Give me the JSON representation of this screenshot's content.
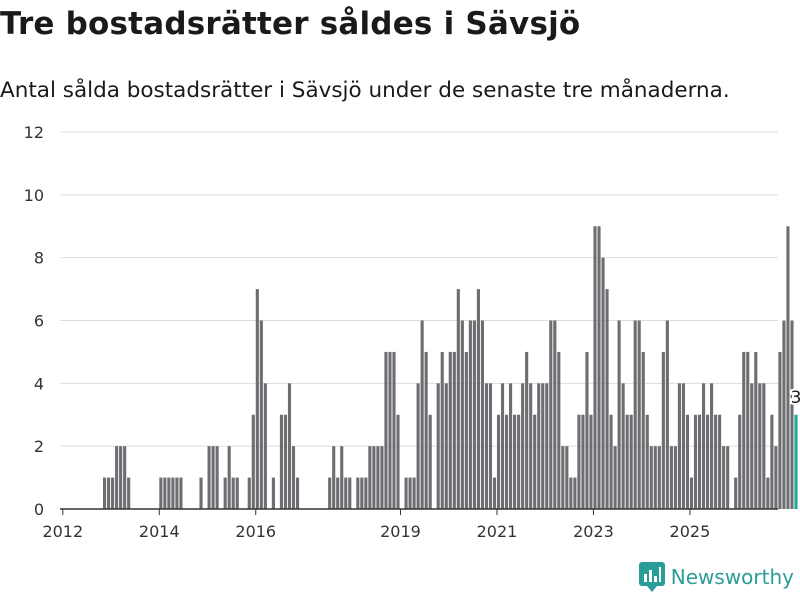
{
  "title": "Tre bostadsrätter såldes i Sävsjö",
  "subtitle": "Antal sålda bostadsrätter i Sävsjö under de senaste tre månaderna.",
  "brand": "Newsworthy",
  "colors": {
    "bar": "#6e6d72",
    "highlight": "#21a59c",
    "grid": "#dddddd",
    "axis": "#333333"
  },
  "chart_data": {
    "type": "bar",
    "xlabel": "",
    "ylabel": "",
    "ylim": [
      0,
      12
    ],
    "yticks": [
      0,
      2,
      4,
      6,
      8,
      10,
      12
    ],
    "xticks": [
      2012,
      2014,
      2016,
      2019,
      2021,
      2023,
      2025
    ],
    "start": "2011-12",
    "values": [
      0,
      0,
      0,
      0,
      0,
      0,
      0,
      0,
      0,
      0,
      0,
      1,
      1,
      1,
      2,
      2,
      2,
      1,
      0,
      0,
      0,
      0,
      0,
      0,
      0,
      1,
      1,
      1,
      1,
      1,
      1,
      0,
      0,
      0,
      0,
      1,
      0,
      2,
      2,
      2,
      0,
      1,
      2,
      1,
      1,
      0,
      0,
      1,
      3,
      7,
      6,
      4,
      0,
      1,
      0,
      3,
      3,
      4,
      2,
      1,
      0,
      0,
      0,
      0,
      0,
      0,
      0,
      1,
      2,
      1,
      2,
      1,
      1,
      0,
      1,
      1,
      1,
      2,
      2,
      2,
      2,
      5,
      5,
      5,
      3,
      0,
      1,
      1,
      1,
      4,
      6,
      5,
      3,
      0,
      4,
      5,
      4,
      5,
      5,
      7,
      6,
      5,
      6,
      6,
      7,
      6,
      4,
      4,
      1,
      3,
      4,
      3,
      4,
      3,
      3,
      4,
      5,
      4,
      3,
      4,
      4,
      4,
      6,
      6,
      5,
      2,
      2,
      1,
      1,
      3,
      3,
      5,
      3,
      9,
      9,
      8,
      7,
      3,
      2,
      6,
      4,
      3,
      3,
      6,
      6,
      5,
      3,
      2,
      2,
      2,
      5,
      6,
      2,
      2,
      4,
      4,
      3,
      1,
      3,
      3,
      4,
      3,
      4,
      3,
      3,
      2,
      2,
      0,
      1,
      3,
      5,
      5,
      4,
      5,
      4,
      4,
      1,
      3,
      2,
      5,
      6,
      9,
      6,
      3
    ],
    "highlight_last": true,
    "last_label": "3"
  }
}
